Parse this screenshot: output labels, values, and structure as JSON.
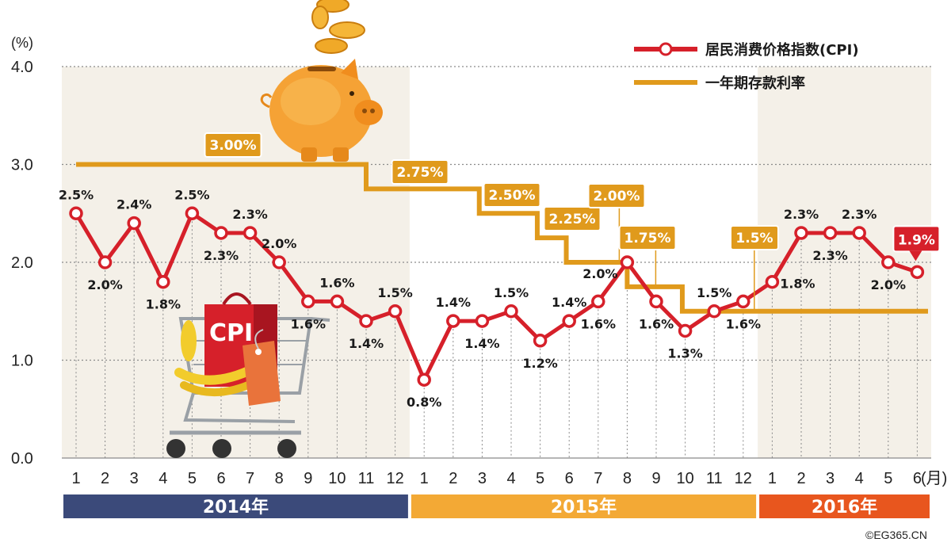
{
  "chart_data": {
    "type": "line",
    "y_unit": "(%)",
    "x_unit": "(月)",
    "ylim": [
      0,
      4
    ],
    "y_ticks": [
      "0.0",
      "1.0",
      "2.0",
      "3.0",
      "4.0"
    ],
    "grid": true,
    "legend_position": "top-right",
    "months": [
      "1",
      "2",
      "3",
      "4",
      "5",
      "6",
      "7",
      "8",
      "9",
      "10",
      "11",
      "12",
      "1",
      "2",
      "3",
      "4",
      "5",
      "6",
      "7",
      "8",
      "9",
      "10",
      "11",
      "12",
      "1",
      "2",
      "3",
      "4",
      "5",
      "6"
    ],
    "years": [
      {
        "label": "2014年",
        "start": 0,
        "end": 11,
        "color": "#3b4a7a"
      },
      {
        "label": "2015年",
        "start": 12,
        "end": 23,
        "color": "#f3a935"
      },
      {
        "label": "2016年",
        "start": 24,
        "end": 29,
        "color": "#e8561e"
      }
    ],
    "series": [
      {
        "name": "居民消费价格指数(CPI)",
        "type": "line",
        "color": "#d6202a",
        "values": [
          2.5,
          2.0,
          2.4,
          1.8,
          2.5,
          2.3,
          2.3,
          2.0,
          1.6,
          1.6,
          1.4,
          1.5,
          0.8,
          1.4,
          1.4,
          1.5,
          1.2,
          1.4,
          1.6,
          2.0,
          1.6,
          1.3,
          1.5,
          1.6,
          1.8,
          2.3,
          2.3,
          2.3,
          2.0,
          1.9
        ],
        "labels": [
          "2.5%",
          "2.0%",
          "2.4%",
          "1.8%",
          "2.5%",
          "2.3%",
          "2.3%",
          "2.0%",
          "1.6%",
          "1.6%",
          "1.4%",
          "1.5%",
          "0.8%",
          "1.4%",
          "1.4%",
          "1.5%",
          "1.2%",
          "1.4%",
          "1.6%",
          "2.0%",
          "1.6%",
          "1.3%",
          "1.5%",
          "1.6%",
          "1.8%",
          "2.3%",
          "2.3%",
          "2.3%",
          "2.0%",
          "1.9%"
        ]
      },
      {
        "name": "一年期存款利率",
        "type": "step",
        "color": "#e09a1c",
        "steps": [
          {
            "label": "3.00%",
            "value": 3.0,
            "start": 0,
            "end": 10.0
          },
          {
            "label": "2.75%",
            "value": 2.75,
            "start": 10.0,
            "end": 13.9
          },
          {
            "label": "2.50%",
            "value": 2.5,
            "start": 13.9,
            "end": 15.9
          },
          {
            "label": "2.25%",
            "value": 2.25,
            "start": 15.9,
            "end": 16.9
          },
          {
            "label": "2.00%",
            "value": 2.0,
            "start": 16.9,
            "end": 19.0
          },
          {
            "label": "1.75%",
            "value": 1.75,
            "start": 19.0,
            "end": 20.9
          },
          {
            "label": "1.5%",
            "value": 1.5,
            "start": 20.9,
            "end": 30.0
          }
        ]
      }
    ],
    "copyright": "©EG365.CN"
  },
  "colors": {
    "band": "#f4f0e8",
    "grid": "#8a8a8a",
    "cpi": "#d6202a",
    "rate": "#e09a1c",
    "rate_label_bg": "#e09a1c",
    "latest_label_bg": "#d6202a"
  },
  "illustrations": [
    "piggy-bank",
    "falling-coins",
    "shopping-cart-with-cpi-bag"
  ]
}
